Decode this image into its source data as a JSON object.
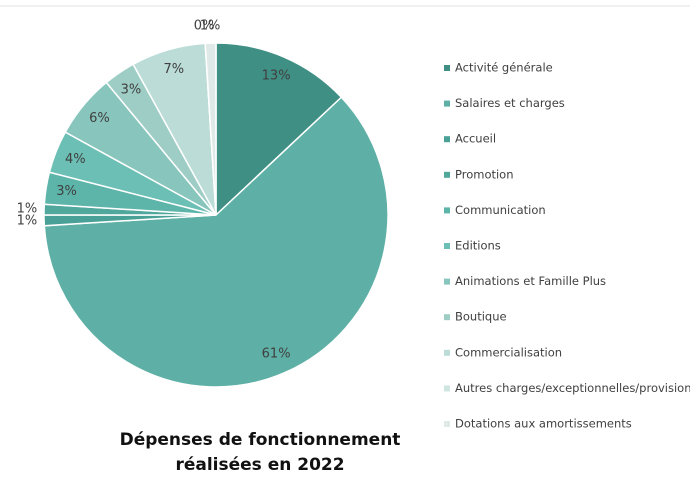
{
  "chart_data": {
    "type": "pie",
    "title": "Dépenses de fonctionnement réalisées en 2022",
    "categories": [
      "Activité générale",
      "Salaires et charges",
      "Accueil",
      "Promotion",
      "Communication",
      "Editions",
      "Animations et Famille Plus",
      "Boutique",
      "Commercialisation",
      "Autres charges/exceptionnelles/provisions",
      "Dotations aux amortissements"
    ],
    "values": [
      13,
      61,
      1,
      1,
      3,
      4,
      6,
      3,
      7,
      0,
      1
    ],
    "value_labels": [
      "13%",
      "61%",
      "1%",
      "1%",
      "3%",
      "4%",
      "6%",
      "3%",
      "7%",
      "0%",
      "1%"
    ],
    "colors": [
      "#3f8f84",
      "#5eb0a6",
      "#48a096",
      "#50a89d",
      "#5db5aa",
      "#6cbfb4",
      "#88c6bd",
      "#9ecdc6",
      "#bbdcd7",
      "#cfe5e2",
      "#dfeae8"
    ],
    "legend": "right"
  }
}
